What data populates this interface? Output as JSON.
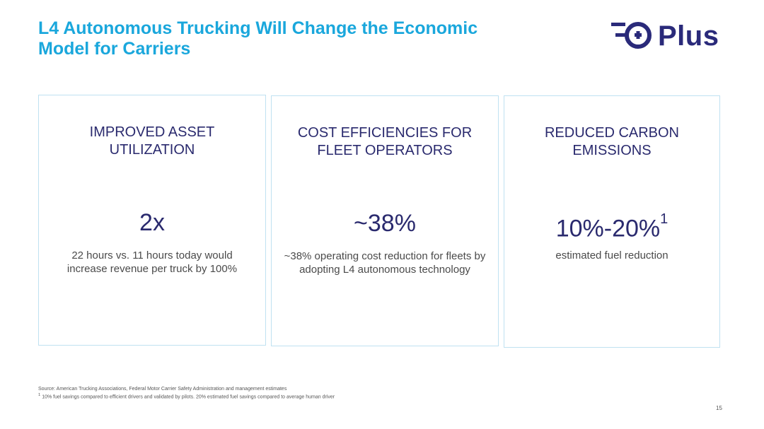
{
  "slide": {
    "title_line1": "L4 Autonomous Trucking Will Change the Economic",
    "title_line2": "Model for Carriers",
    "page_number": "15"
  },
  "logo": {
    "text": "Plus",
    "icon": "plus-logo-icon",
    "brand_color": "#2a2a7a"
  },
  "cards": [
    {
      "heading_line1": "IMPROVED ASSET",
      "heading_line2": "UTILIZATION",
      "value": "2x",
      "desc_line1": "22 hours vs. 11 hours today would",
      "desc_line2": "increase revenue per truck by 100%"
    },
    {
      "heading_line1": "COST EFFICIENCIES FOR",
      "heading_line2": "FLEET OPERATORS",
      "value": "~38%",
      "desc_line1": "~38% operating cost reduction for fleets by",
      "desc_line2": "adopting L4 autonomous technology"
    },
    {
      "heading_line1": "REDUCED CARBON",
      "heading_line2": "EMISSIONS",
      "value": "10%-20%",
      "value_sup": "1",
      "desc_line1": "estimated fuel reduction"
    }
  ],
  "footnotes": {
    "source": "Source: American Trucking Associations, Federal Motor Carrier Safety Administration and management estimates",
    "note_marker": "1",
    "note": "10% fuel savings compared to efficient drivers and validated by pilots. 20% estimated fuel savings compared to average human driver"
  },
  "colors": {
    "title": "#1aa7dc",
    "card_border": "#bfe1f1",
    "card_text": "#2a2a6e"
  }
}
